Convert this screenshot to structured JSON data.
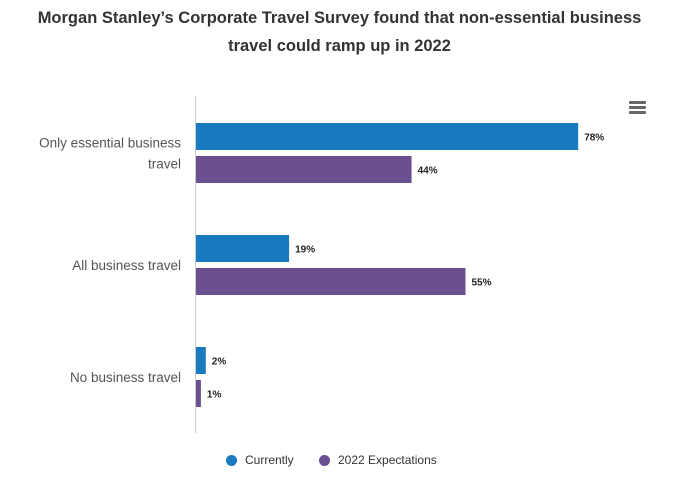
{
  "chart_data": {
    "type": "bar",
    "orientation": "horizontal",
    "title": "Morgan Stanley’s Corporate Travel Survey found that non-essential business travel could ramp up in 2022",
    "title_lines": [
      "Morgan Stanley’s Corporate Travel Survey found that non-essential business",
      "travel could ramp up in 2022"
    ],
    "categories": [
      "Only essential business travel",
      "All business travel",
      "No business travel"
    ],
    "category_lines": [
      [
        "Only essential business",
        "travel"
      ],
      [
        "All business travel"
      ],
      [
        "No business travel"
      ]
    ],
    "series": [
      {
        "name": "Currently",
        "values": [
          78,
          19,
          2
        ],
        "color": "#1a7abf"
      },
      {
        "name": "2022 Expectations",
        "values": [
          44,
          55,
          1
        ],
        "color": "#6a5090"
      }
    ],
    "value_suffix": "%",
    "xlim": [
      0,
      80
    ],
    "xlabel": "",
    "ylabel": "",
    "grid": false,
    "legend_position": "bottom-center"
  },
  "menu": {
    "icon": "hamburger-menu-icon"
  }
}
